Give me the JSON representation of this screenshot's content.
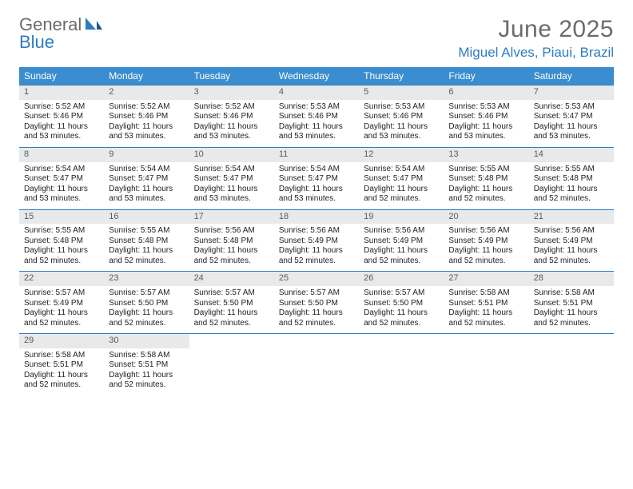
{
  "logo": {
    "top": "General",
    "bottom": "Blue"
  },
  "title": "June 2025",
  "location": "Miguel Alves, Piaui, Brazil",
  "colors": {
    "header_bg": "#3a8dcf",
    "rule": "#2e7cc0",
    "daynum_bg": "#e8e9ea",
    "logo_gray": "#6b6b6b",
    "logo_blue": "#2e7cc0"
  },
  "weekdays": [
    "Sunday",
    "Monday",
    "Tuesday",
    "Wednesday",
    "Thursday",
    "Friday",
    "Saturday"
  ],
  "days": [
    {
      "n": "1",
      "sr": "5:52 AM",
      "ss": "5:46 PM",
      "dl": "11 hours and 53 minutes."
    },
    {
      "n": "2",
      "sr": "5:52 AM",
      "ss": "5:46 PM",
      "dl": "11 hours and 53 minutes."
    },
    {
      "n": "3",
      "sr": "5:52 AM",
      "ss": "5:46 PM",
      "dl": "11 hours and 53 minutes."
    },
    {
      "n": "4",
      "sr": "5:53 AM",
      "ss": "5:46 PM",
      "dl": "11 hours and 53 minutes."
    },
    {
      "n": "5",
      "sr": "5:53 AM",
      "ss": "5:46 PM",
      "dl": "11 hours and 53 minutes."
    },
    {
      "n": "6",
      "sr": "5:53 AM",
      "ss": "5:46 PM",
      "dl": "11 hours and 53 minutes."
    },
    {
      "n": "7",
      "sr": "5:53 AM",
      "ss": "5:47 PM",
      "dl": "11 hours and 53 minutes."
    },
    {
      "n": "8",
      "sr": "5:54 AM",
      "ss": "5:47 PM",
      "dl": "11 hours and 53 minutes."
    },
    {
      "n": "9",
      "sr": "5:54 AM",
      "ss": "5:47 PM",
      "dl": "11 hours and 53 minutes."
    },
    {
      "n": "10",
      "sr": "5:54 AM",
      "ss": "5:47 PM",
      "dl": "11 hours and 53 minutes."
    },
    {
      "n": "11",
      "sr": "5:54 AM",
      "ss": "5:47 PM",
      "dl": "11 hours and 53 minutes."
    },
    {
      "n": "12",
      "sr": "5:54 AM",
      "ss": "5:47 PM",
      "dl": "11 hours and 52 minutes."
    },
    {
      "n": "13",
      "sr": "5:55 AM",
      "ss": "5:48 PM",
      "dl": "11 hours and 52 minutes."
    },
    {
      "n": "14",
      "sr": "5:55 AM",
      "ss": "5:48 PM",
      "dl": "11 hours and 52 minutes."
    },
    {
      "n": "15",
      "sr": "5:55 AM",
      "ss": "5:48 PM",
      "dl": "11 hours and 52 minutes."
    },
    {
      "n": "16",
      "sr": "5:55 AM",
      "ss": "5:48 PM",
      "dl": "11 hours and 52 minutes."
    },
    {
      "n": "17",
      "sr": "5:56 AM",
      "ss": "5:48 PM",
      "dl": "11 hours and 52 minutes."
    },
    {
      "n": "18",
      "sr": "5:56 AM",
      "ss": "5:49 PM",
      "dl": "11 hours and 52 minutes."
    },
    {
      "n": "19",
      "sr": "5:56 AM",
      "ss": "5:49 PM",
      "dl": "11 hours and 52 minutes."
    },
    {
      "n": "20",
      "sr": "5:56 AM",
      "ss": "5:49 PM",
      "dl": "11 hours and 52 minutes."
    },
    {
      "n": "21",
      "sr": "5:56 AM",
      "ss": "5:49 PM",
      "dl": "11 hours and 52 minutes."
    },
    {
      "n": "22",
      "sr": "5:57 AM",
      "ss": "5:49 PM",
      "dl": "11 hours and 52 minutes."
    },
    {
      "n": "23",
      "sr": "5:57 AM",
      "ss": "5:50 PM",
      "dl": "11 hours and 52 minutes."
    },
    {
      "n": "24",
      "sr": "5:57 AM",
      "ss": "5:50 PM",
      "dl": "11 hours and 52 minutes."
    },
    {
      "n": "25",
      "sr": "5:57 AM",
      "ss": "5:50 PM",
      "dl": "11 hours and 52 minutes."
    },
    {
      "n": "26",
      "sr": "5:57 AM",
      "ss": "5:50 PM",
      "dl": "11 hours and 52 minutes."
    },
    {
      "n": "27",
      "sr": "5:58 AM",
      "ss": "5:51 PM",
      "dl": "11 hours and 52 minutes."
    },
    {
      "n": "28",
      "sr": "5:58 AM",
      "ss": "5:51 PM",
      "dl": "11 hours and 52 minutes."
    },
    {
      "n": "29",
      "sr": "5:58 AM",
      "ss": "5:51 PM",
      "dl": "11 hours and 52 minutes."
    },
    {
      "n": "30",
      "sr": "5:58 AM",
      "ss": "5:51 PM",
      "dl": "11 hours and 52 minutes."
    }
  ],
  "labels": {
    "sunrise": "Sunrise:",
    "sunset": "Sunset:",
    "daylight": "Daylight:"
  }
}
